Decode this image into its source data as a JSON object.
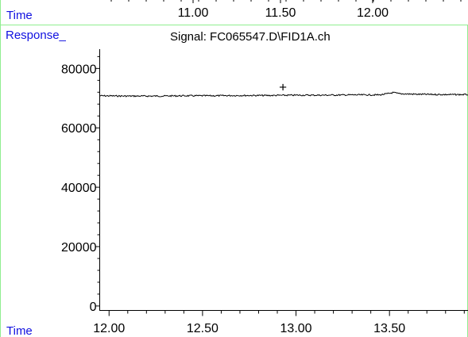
{
  "top_strip": {
    "time_label": "Time",
    "tick_labels": [
      "11.00",
      "11.50",
      "12.00"
    ]
  },
  "panel": {
    "response_label": "Response_",
    "signal_title": "Signal: FC065547.D\\FID1A.ch",
    "time_label": "Time"
  },
  "colors": {
    "frame_green": "#90ee90",
    "label_blue": "#1010e0",
    "trace": "#000000"
  },
  "chart_data": {
    "type": "line",
    "title": "Signal: FC065547.D\\FID1A.ch",
    "xlabel": "Time",
    "ylabel": "Response_",
    "xlim": [
      11.95,
      13.92
    ],
    "ylim": [
      -1500,
      86500
    ],
    "x_ticks": [
      12.0,
      12.5,
      13.0,
      13.5
    ],
    "x_tick_labels": [
      "12.00",
      "12.50",
      "13.00",
      "13.50"
    ],
    "y_ticks": [
      0,
      20000,
      40000,
      60000,
      80000
    ],
    "y_tick_labels": [
      "0",
      "20000",
      "40000",
      "60000",
      "80000"
    ],
    "series": [
      {
        "x": [
          11.95,
          12.1,
          12.25,
          12.4,
          12.55,
          12.7,
          12.85,
          13.0,
          13.15,
          13.3,
          13.45,
          13.5,
          13.52,
          13.55,
          13.65,
          13.8,
          13.92
        ],
        "y": [
          70800,
          70700,
          70700,
          70800,
          70800,
          70900,
          70900,
          71000,
          71000,
          71100,
          71100,
          71600,
          71900,
          71500,
          71300,
          71200,
          71200
        ]
      }
    ],
    "marker": {
      "x": 12.93,
      "y": 73500,
      "symbol": "+"
    },
    "grid": false
  }
}
